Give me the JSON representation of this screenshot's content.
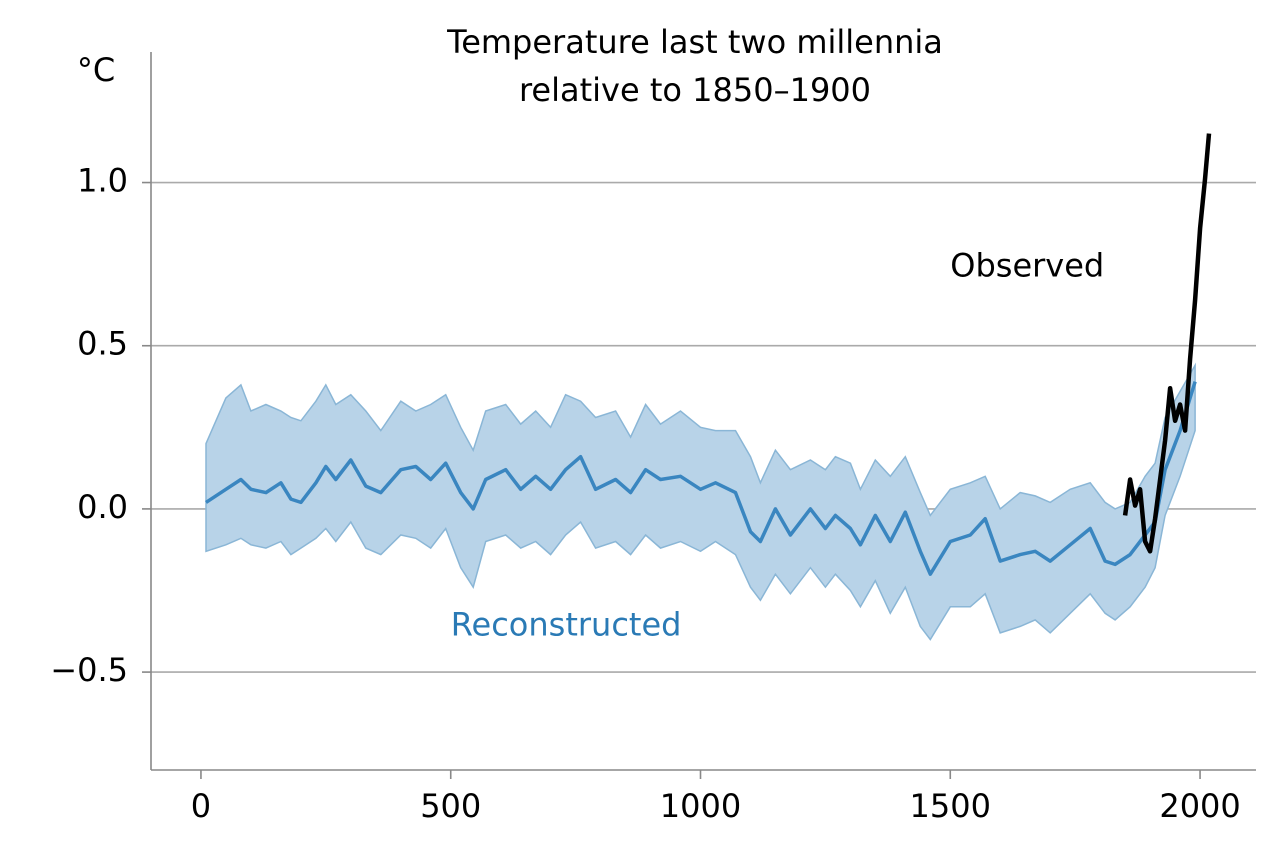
{
  "chart_data": {
    "type": "line",
    "title": [
      "Temperature last two millennia",
      "relative to 1850–1900"
    ],
    "y_label": "°C",
    "xlim": [
      -100,
      2112
    ],
    "ylim": [
      -0.8,
      1.4
    ],
    "xticks": [
      0,
      500,
      1000,
      1500,
      2000
    ],
    "yticks": [
      {
        "value": 1.0,
        "label": "1.0"
      },
      0.5,
      {
        "value": 0.0,
        "label": "0.0"
      },
      {
        "value": -0.5,
        "label": "−0.5"
      }
    ],
    "grid": "y",
    "series": [
      {
        "name": "Reconstructed",
        "color": "#3a86c0",
        "band_color": "#b8d3e8",
        "x": [
          10,
          50,
          80,
          100,
          130,
          160,
          180,
          200,
          230,
          250,
          270,
          300,
          330,
          360,
          400,
          430,
          460,
          490,
          520,
          545,
          570,
          610,
          640,
          670,
          700,
          730,
          760,
          790,
          830,
          860,
          890,
          920,
          960,
          1000,
          1030,
          1070,
          1100,
          1120,
          1150,
          1180,
          1220,
          1250,
          1270,
          1300,
          1320,
          1350,
          1380,
          1410,
          1440,
          1460,
          1500,
          1540,
          1570,
          1600,
          1640,
          1670,
          1700,
          1740,
          1780,
          1810,
          1830,
          1860,
          1890,
          1910,
          1930,
          1960,
          1990
        ],
        "values": [
          0.02,
          0.06,
          0.09,
          0.06,
          0.05,
          0.08,
          0.03,
          0.02,
          0.08,
          0.13,
          0.09,
          0.15,
          0.07,
          0.05,
          0.12,
          0.13,
          0.09,
          0.14,
          0.05,
          0.0,
          0.09,
          0.12,
          0.06,
          0.1,
          0.06,
          0.12,
          0.16,
          0.06,
          0.09,
          0.05,
          0.12,
          0.09,
          0.1,
          0.06,
          0.08,
          0.05,
          -0.07,
          -0.1,
          0.0,
          -0.08,
          0.0,
          -0.06,
          -0.02,
          -0.06,
          -0.11,
          -0.02,
          -0.1,
          -0.01,
          -0.13,
          -0.2,
          -0.1,
          -0.08,
          -0.03,
          -0.16,
          -0.14,
          -0.13,
          -0.16,
          -0.11,
          -0.06,
          -0.16,
          -0.17,
          -0.14,
          -0.08,
          -0.04,
          0.12,
          0.24,
          0.39
        ],
        "upper": [
          0.2,
          0.34,
          0.38,
          0.3,
          0.32,
          0.3,
          0.28,
          0.27,
          0.33,
          0.38,
          0.32,
          0.35,
          0.3,
          0.24,
          0.33,
          0.3,
          0.32,
          0.35,
          0.25,
          0.18,
          0.3,
          0.32,
          0.26,
          0.3,
          0.25,
          0.35,
          0.33,
          0.28,
          0.3,
          0.22,
          0.32,
          0.26,
          0.3,
          0.25,
          0.24,
          0.24,
          0.16,
          0.08,
          0.18,
          0.12,
          0.15,
          0.12,
          0.16,
          0.14,
          0.06,
          0.15,
          0.1,
          0.16,
          0.05,
          -0.02,
          0.06,
          0.08,
          0.1,
          0.0,
          0.05,
          0.04,
          0.02,
          0.06,
          0.08,
          0.02,
          0.0,
          0.02,
          0.1,
          0.14,
          0.28,
          0.36,
          0.44
        ],
        "lower": [
          -0.13,
          -0.11,
          -0.09,
          -0.11,
          -0.12,
          -0.1,
          -0.14,
          -0.12,
          -0.09,
          -0.06,
          -0.1,
          -0.04,
          -0.12,
          -0.14,
          -0.08,
          -0.09,
          -0.12,
          -0.06,
          -0.18,
          -0.24,
          -0.1,
          -0.08,
          -0.12,
          -0.1,
          -0.14,
          -0.08,
          -0.04,
          -0.12,
          -0.1,
          -0.14,
          -0.08,
          -0.12,
          -0.1,
          -0.13,
          -0.1,
          -0.14,
          -0.24,
          -0.28,
          -0.2,
          -0.26,
          -0.18,
          -0.24,
          -0.2,
          -0.25,
          -0.3,
          -0.22,
          -0.32,
          -0.24,
          -0.36,
          -0.4,
          -0.3,
          -0.3,
          -0.26,
          -0.38,
          -0.36,
          -0.34,
          -0.38,
          -0.32,
          -0.26,
          -0.32,
          -0.34,
          -0.3,
          -0.24,
          -0.18,
          -0.02,
          0.1,
          0.24
        ]
      },
      {
        "name": "Observed",
        "color": "#000000",
        "x": [
          1850,
          1860,
          1870,
          1880,
          1890,
          1900,
          1910,
          1920,
          1930,
          1940,
          1950,
          1960,
          1970,
          1980,
          1990,
          2000,
          2010,
          2018
        ],
        "values": [
          -0.02,
          0.09,
          0.01,
          0.06,
          -0.1,
          -0.13,
          -0.03,
          0.09,
          0.21,
          0.37,
          0.27,
          0.32,
          0.24,
          0.46,
          0.64,
          0.86,
          1.01,
          1.15
        ]
      }
    ]
  }
}
